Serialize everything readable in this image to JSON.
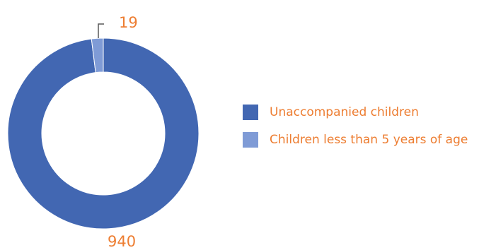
{
  "chart_data": {
    "type": "pie",
    "variant": "donut",
    "title": "",
    "categories": [
      "Unaccompanied children",
      "Children less than 5 years of age"
    ],
    "values": [
      940,
      19
    ],
    "colors": [
      "#4267B2",
      "#7F9BD6"
    ],
    "data_labels": [
      "940",
      "19"
    ],
    "label_color": "#ED7D31",
    "legend": {
      "position": "right",
      "items": [
        {
          "label": "Unaccompanied children",
          "color": "#4267B2"
        },
        {
          "label": "Children less than 5 years of age",
          "color": "#7F9BD6"
        }
      ]
    }
  }
}
